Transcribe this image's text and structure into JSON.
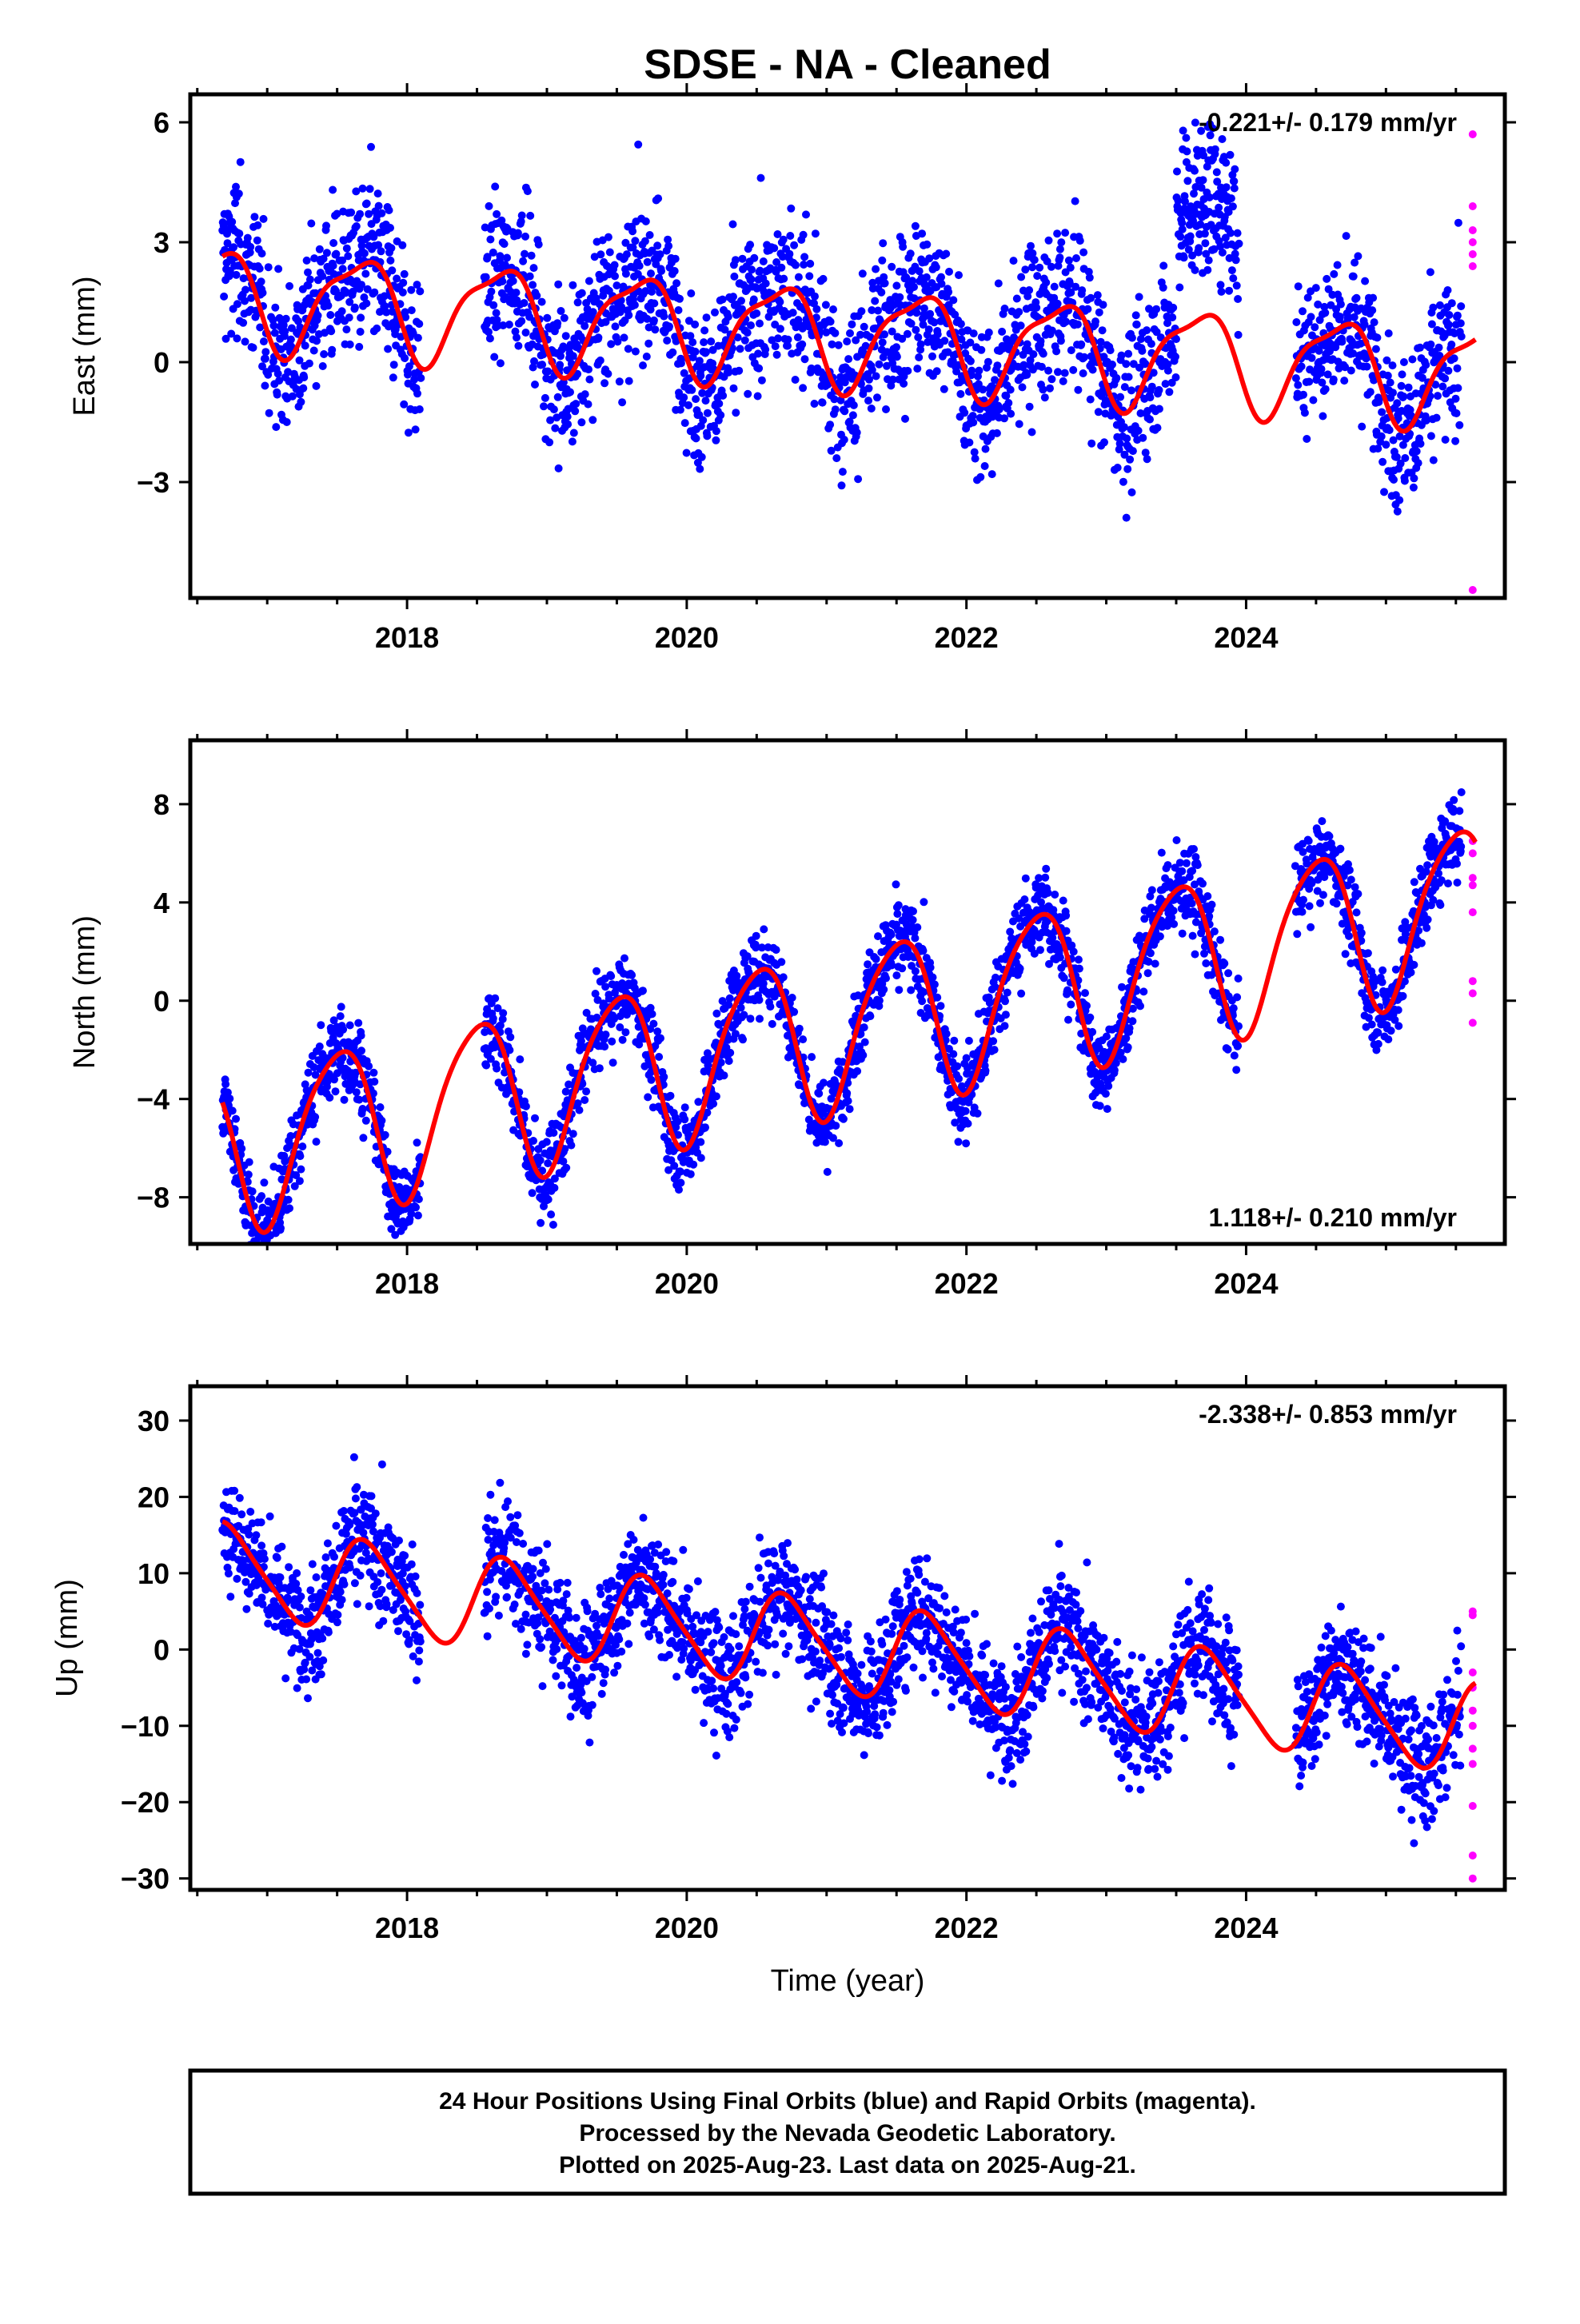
{
  "title": "SDSE  - NA - Cleaned",
  "colors": {
    "final_orbits": "#0000ff",
    "rapid_orbits": "#ff00ff",
    "model_fit": "#ff0000",
    "frame": "#000000",
    "background": "#ffffff"
  },
  "xlabel": "Time (year)",
  "footer": {
    "line1": "24 Hour Positions Using Final Orbits (blue) and Rapid Orbits (magenta).",
    "line2": "Processed by the Nevada Geodetic Laboratory.",
    "line3": "Plotted on 2025-Aug-23. Last data on 2025-Aug-21."
  },
  "chart_data": [
    {
      "type": "scatter",
      "component": "east",
      "ylabel": "East (mm)",
      "rate": "-0.221+/- 0.179 mm/yr",
      "rate_position": "top-right",
      "xlim": [
        2016.45,
        2025.85
      ],
      "ylim": [
        -5.9,
        6.7
      ],
      "x_ticks": [
        2018,
        2020,
        2022,
        2024
      ],
      "y_ticks": [
        -3,
        0,
        3,
        6
      ],
      "grid": false,
      "data_start": 2016.68,
      "data_end": 2025.64,
      "model": {
        "rate": -0.221,
        "annual_amp": 1.2,
        "annual_peak": 0.65,
        "semi_amp": 0.35,
        "semi_peak": 0.35,
        "intercept": 0.7,
        "ref": 2021.0
      },
      "scatter_sd": 1.0,
      "anomalies": [
        {
          "x0": 2023.5,
          "x1": 2023.95,
          "offset": 3.0
        }
      ],
      "gaps": [
        [
          2018.1,
          2018.55
        ],
        [
          2023.95,
          2024.35
        ]
      ],
      "rapid_points": [
        5.7,
        3.9,
        3.3,
        3.0,
        2.7,
        2.4,
        -5.7
      ]
    },
    {
      "type": "scatter",
      "component": "north",
      "ylabel": "North (mm)",
      "rate": "1.118+/- 0.210 mm/yr",
      "rate_position": "bottom-right",
      "xlim": [
        2016.45,
        2025.85
      ],
      "ylim": [
        -9.9,
        10.6
      ],
      "x_ticks": [
        2018,
        2020,
        2022,
        2024
      ],
      "y_ticks": [
        -8,
        -4,
        0,
        4,
        8
      ],
      "grid": false,
      "data_start": 2016.68,
      "data_end": 2025.64,
      "model": {
        "rate": 1.118,
        "annual_amp": 3.3,
        "annual_peak": 0.5,
        "semi_amp": 0.5,
        "semi_peak": 0.2,
        "intercept": -1.2,
        "ref": 2021.0
      },
      "scatter_sd": 0.9,
      "anomalies": [],
      "gaps": [
        [
          2018.1,
          2018.55
        ],
        [
          2023.95,
          2024.35
        ]
      ],
      "rapid_points": [
        6.5,
        6.0,
        5.0,
        4.7,
        3.6,
        0.8,
        0.3,
        -0.9
      ]
    },
    {
      "type": "scatter",
      "component": "up",
      "ylabel": "Up (mm)",
      "rate": "-2.338+/- 0.853 mm/yr",
      "rate_position": "top-right",
      "xlim": [
        2016.45,
        2025.85
      ],
      "ylim": [
        -31.5,
        34.5
      ],
      "x_ticks": [
        2018,
        2020,
        2022,
        2024
      ],
      "y_ticks": [
        -30,
        -20,
        -10,
        0,
        10,
        20,
        30
      ],
      "grid": false,
      "data_start": 2016.68,
      "data_end": 2025.64,
      "model": {
        "rate": -2.338,
        "annual_amp": 5.8,
        "annual_peak": 0.72,
        "semi_amp": 1.0,
        "semi_peak": 0.1,
        "intercept": 0.5,
        "ref": 2021.0
      },
      "scatter_sd": 4.0,
      "anomalies": [],
      "gaps": [
        [
          2018.1,
          2018.55
        ],
        [
          2023.95,
          2024.35
        ]
      ],
      "rapid_points": [
        5.0,
        4.5,
        -3.0,
        -5.0,
        -8.0,
        -10.0,
        -13.0,
        -15.0,
        -20.5,
        -27.0,
        -30.0
      ]
    }
  ]
}
